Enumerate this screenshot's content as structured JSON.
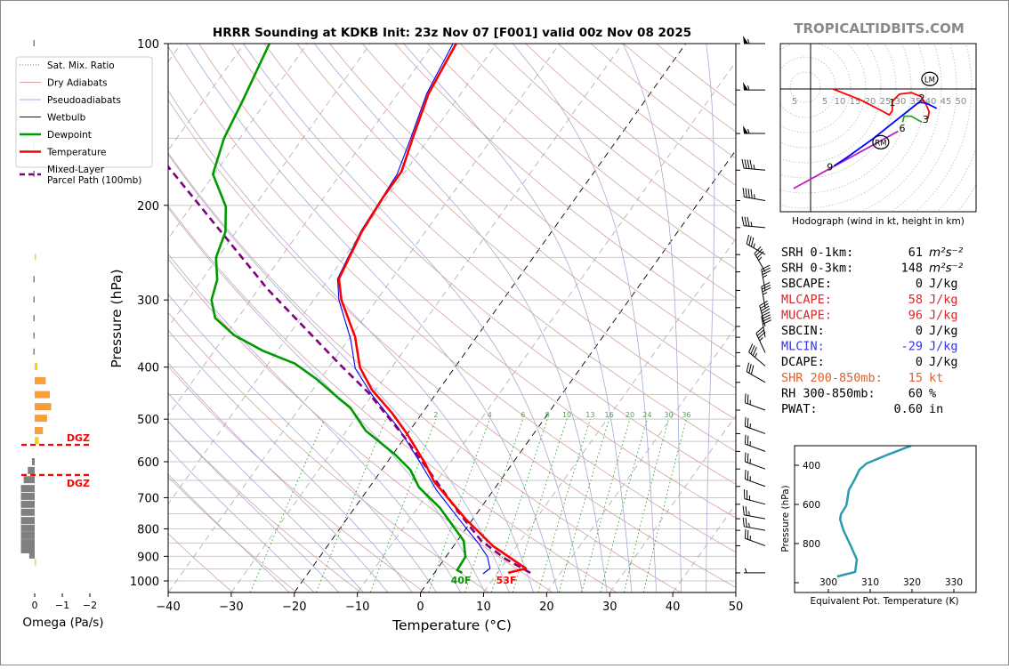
{
  "title": "HRRR Sounding at KDKB Init: 23z Nov 07 [F001] valid 00z Nov 08 2025",
  "watermark": "TROPICALTIDBITS.COM",
  "legend": [
    {
      "label": "Sat. Mix. Ratio",
      "color": "#2ca02c",
      "style": "dotted"
    },
    {
      "label": "Dry Adiabats",
      "color": "#d9a0a0",
      "style": "solid"
    },
    {
      "label": "Pseudoadiabats",
      "color": "#a8a8d8",
      "style": "solid"
    },
    {
      "label": "Wetbulb",
      "color": "#0000ee",
      "style": "solid"
    },
    {
      "label": "Dewpoint",
      "color": "#009900",
      "style": "thick"
    },
    {
      "label": "Temperature",
      "color": "#ff0000",
      "style": "thick"
    },
    {
      "label": "Mixed-Layer",
      "label2": "Parcel Path (100mb)",
      "color": "#800080",
      "style": "dashed"
    }
  ],
  "stats": [
    {
      "label": "SRH 0-1km:",
      "value": "61",
      "unit": "m²s⁻²",
      "color": "#000000"
    },
    {
      "label": "SRH 0-3km:",
      "value": "148",
      "unit": "m²s⁻²",
      "color": "#000000"
    },
    {
      "label": "SBCAPE:",
      "value": "0",
      "unit": "J/kg",
      "color": "#000000"
    },
    {
      "label": "MLCAPE:",
      "value": "58",
      "unit": "J/kg",
      "color": "#d62728"
    },
    {
      "label": "MUCAPE:",
      "value": "96",
      "unit": "J/kg",
      "color": "#d62728"
    },
    {
      "label": "SBCIN:",
      "value": "0",
      "unit": "J/kg",
      "color": "#000000"
    },
    {
      "label": "MLCIN:",
      "value": "-29",
      "unit": "J/kg",
      "color": "#3333dd"
    },
    {
      "label": "DCAPE:",
      "value": "0",
      "unit": "J/kg",
      "color": "#000000"
    },
    {
      "label": "SHR 200-850mb:",
      "value": "15",
      "unit": "kt",
      "color": "#e0602a"
    },
    {
      "label": "RH 300-850mb:",
      "value": "60",
      "unit": "%",
      "color": "#000000"
    },
    {
      "label": "PWAT:",
      "value": "0.60",
      "unit": "in",
      "color": "#000000"
    }
  ],
  "chart_data": [
    {
      "type": "line",
      "name": "skewt",
      "title": "HRRR Sounding at KDKB Init: 23z Nov 07 [F001] valid 00z Nov 08 2025",
      "xlabel": "Temperature (°C)",
      "ylabel": "Pressure (hPa)",
      "xlim": [
        -40,
        50
      ],
      "ylim": [
        1050,
        100
      ],
      "x_ticks": [
        "−40",
        "−30",
        "−20",
        "−10",
        "0",
        "10",
        "20",
        "30",
        "40",
        "50"
      ],
      "x_tick_values": [
        -40,
        -30,
        -20,
        -10,
        0,
        10,
        20,
        30,
        40,
        50
      ],
      "y_ticks": [
        "100",
        "200",
        "300",
        "400",
        "500",
        "600",
        "700",
        "800",
        "900",
        "1000"
      ],
      "y_tick_values": [
        100,
        200,
        300,
        400,
        500,
        600,
        700,
        800,
        900,
        1000
      ],
      "mixing_ratio_labels": [
        "2",
        "4",
        "6",
        "8",
        "10",
        "13",
        "16",
        "20",
        "24",
        "30",
        "36"
      ],
      "mixing_ratio_values": [
        2,
        4,
        6,
        8,
        10,
        13,
        16,
        20,
        24,
        30,
        36
      ],
      "surface_temp_label": "53F",
      "surface_dewpoint_label": "40F",
      "series": [
        {
          "name": "Temperature",
          "color": "#ff0000",
          "p": [
            966,
            948,
            862,
            769,
            653,
            605,
            533,
            487,
            441,
            400,
            352,
            300,
            274,
            224,
            193,
            173,
            150,
            124,
            100
          ],
          "t": [
            11.7,
            14.0,
            6.3,
            -1.0,
            -10.4,
            -13.8,
            -20.0,
            -24.8,
            -30.6,
            -35.1,
            -39.2,
            -45.6,
            -48.4,
            -50.1,
            -50.6,
            -50.6,
            -52.6,
            -55.1,
            -56.4
          ]
        },
        {
          "name": "Dewpoint",
          "color": "#009900",
          "p": [
            966,
            955,
            902,
            842,
            820,
            731,
            670,
            621,
            582,
            525,
            476,
            458,
            421,
            394,
            373,
            349,
            324,
            300,
            275,
            250,
            224,
            201,
            175,
            150,
            129,
            100
          ],
          "t": [
            4.4,
            3.3,
            3.1,
            1.0,
            -0.4,
            -6.5,
            -12.1,
            -15.5,
            -19.6,
            -27.0,
            -32.0,
            -34.8,
            -40.6,
            -45.8,
            -52.3,
            -58.6,
            -63.6,
            -66.2,
            -67.6,
            -70.3,
            -71.7,
            -74.5,
            -80.2,
            -82.5,
            -83.7,
            -86.0
          ]
        },
        {
          "name": "Wetbulb",
          "color": "#0000ee",
          "p": [
            970,
            948,
            902,
            852,
            798,
            678,
            605,
            519,
            451,
            402,
            355,
            300,
            274,
            223,
            175,
            150,
            124,
            100
          ],
          "t": [
            7.8,
            8.3,
            6.6,
            3.7,
            0.0,
            -9.0,
            -14.5,
            -22.1,
            -30.0,
            -35.7,
            -39.7,
            -46.0,
            -48.6,
            -50.3,
            -51.0,
            -52.9,
            -55.4,
            -56.9
          ]
        },
        {
          "name": "Mixed-Layer Parcel Path (100mb)",
          "color": "#800080",
          "p": [
            966,
            909,
            842,
            740,
            653,
            539,
            446,
            394,
            287,
            169
          ],
          "t": [
            15.2,
            9.6,
            3.8,
            -3.4,
            -10.0,
            -20.2,
            -30.9,
            -38.8,
            -58.4,
            -88.3
          ]
        }
      ],
      "winds": [
        {
          "p": 100,
          "kt": 55,
          "dir": 270
        },
        {
          "p": 122,
          "kt": 55,
          "dir": 270
        },
        {
          "p": 147,
          "kt": 55,
          "dir": 270
        },
        {
          "p": 172,
          "kt": 45,
          "dir": 275
        },
        {
          "p": 196,
          "kt": 45,
          "dir": 280
        },
        {
          "p": 220,
          "kt": 35,
          "dir": 275
        },
        {
          "p": 247,
          "kt": 35,
          "dir": 300
        },
        {
          "p": 266,
          "kt": 35,
          "dir": 330
        },
        {
          "p": 288,
          "kt": 35,
          "dir": 350
        },
        {
          "p": 310,
          "kt": 35,
          "dir": 350
        },
        {
          "p": 336,
          "kt": 40,
          "dir": 345
        },
        {
          "p": 352,
          "kt": 40,
          "dir": 350
        },
        {
          "p": 376,
          "kt": 35,
          "dir": 335
        },
        {
          "p": 398,
          "kt": 35,
          "dir": 310
        },
        {
          "p": 427,
          "kt": 30,
          "dir": 300
        },
        {
          "p": 481,
          "kt": 25,
          "dir": 290
        },
        {
          "p": 532,
          "kt": 25,
          "dir": 290
        },
        {
          "p": 574,
          "kt": 25,
          "dir": 290
        },
        {
          "p": 619,
          "kt": 25,
          "dir": 290
        },
        {
          "p": 667,
          "kt": 25,
          "dir": 290
        },
        {
          "p": 720,
          "kt": 25,
          "dir": 285
        },
        {
          "p": 766,
          "kt": 25,
          "dir": 280
        },
        {
          "p": 805,
          "kt": 25,
          "dir": 280
        },
        {
          "p": 860,
          "kt": 25,
          "dir": 290
        },
        {
          "p": 966,
          "kt": 5,
          "dir": 270
        }
      ]
    },
    {
      "type": "bar",
      "name": "omega",
      "xlabel": "Omega (Pa/s)",
      "x_ticks": [
        "0",
        "−1",
        "−2"
      ],
      "x_tick_values": [
        0,
        -1,
        -2
      ],
      "dgz_label": "DGZ",
      "dgz_bounds_hpa": [
        558,
        635
      ],
      "levels_hpa": [
        100,
        155,
        175,
        250,
        275,
        300,
        325,
        350,
        375,
        399,
        424,
        450,
        474,
        498,
        525,
        548,
        600,
        623,
        648,
        673,
        696,
        720,
        745,
        772,
        798,
        823,
        849,
        875,
        895,
        925
      ],
      "omega": [
        0.02,
        0.02,
        0.02,
        -0.01,
        0.02,
        0.02,
        0.03,
        0.04,
        0.02,
        -0.1,
        -0.4,
        -0.55,
        -0.6,
        -0.45,
        -0.3,
        -0.15,
        0.1,
        0.25,
        0.4,
        0.5,
        0.5,
        0.5,
        0.5,
        0.5,
        0.5,
        0.5,
        0.5,
        0.5,
        0.2,
        -0.01
      ]
    },
    {
      "type": "line",
      "name": "hodograph",
      "caption": "Hodograph (wind in kt, height in km)",
      "ring_labels": [
        "5",
        "5",
        "10",
        "15",
        "20",
        "25",
        "30",
        "35",
        "40",
        "45",
        "50"
      ],
      "ring_label_values": [
        -5,
        5,
        10,
        15,
        20,
        25,
        30,
        35,
        40,
        45,
        50
      ],
      "segments": [
        {
          "color": "#ff0000",
          "u": [
            7.4,
            16.7,
            23.5,
            26,
            27,
            27,
            29.4,
            33.3,
            36.5,
            38.2,
            39.2,
            38.7
          ],
          "v": [
            0,
            -3.7,
            -7.2,
            -8.6,
            -7.2,
            -4.1,
            -1.7,
            -1.2,
            -2.5,
            -5.2,
            -7.6,
            -10
          ]
        },
        {
          "color": "#2ca02c",
          "u": [
            36.8,
            33.3,
            30.9,
            30.4
          ],
          "v": [
            -11,
            -9,
            -9,
            -11
          ]
        },
        {
          "color": "#bb22bb",
          "u": [
            28.9,
            -5.4,
            6.4
          ],
          "v": [
            -14,
            -32.8,
            -26.3
          ]
        },
        {
          "color": "#0000ff",
          "u": [
            41.7,
            38.2,
            35.8,
            20.6,
            11.8,
            7.8
          ],
          "v": [
            -6.4,
            -4.7,
            -4.4,
            -16.5,
            -22.8,
            -25.4
          ]
        }
      ],
      "height_labels": [
        {
          "text": "1",
          "u": 27,
          "v": -4.4
        },
        {
          "text": "2",
          "u": 36.8,
          "v": -3
        },
        {
          "text": "3",
          "u": 38,
          "v": -10
        },
        {
          "text": "6",
          "u": 30.3,
          "v": -13
        },
        {
          "text": "9",
          "u": 6.4,
          "v": -25.8
        }
      ],
      "storm_motion": [
        {
          "text": "LM",
          "u": 39.4,
          "v": 3.3
        },
        {
          "text": "RM",
          "u": 23.2,
          "v": -17.6
        }
      ]
    },
    {
      "type": "line",
      "name": "theta_e",
      "xlabel": "Equivalent Pot. Temperature (K)",
      "ylabel": "Pressure (hPa)",
      "xlim": [
        292,
        335
      ],
      "ylim": [
        1050,
        300
      ],
      "x_ticks": [
        "300",
        "310",
        "320",
        "330"
      ],
      "x_tick_values": [
        300,
        310,
        320,
        330
      ],
      "y_ticks": [
        "400",
        "600",
        "800"
      ],
      "y_tick_values": [
        400,
        600,
        800
      ],
      "color": "#2a9ab0",
      "p": [
        968,
        945,
        882,
        809,
        732,
        677,
        650,
        605,
        527,
        468,
        423,
        391,
        345,
        300
      ],
      "theta_e": [
        302.1,
        306.4,
        306.8,
        305.3,
        303.6,
        302.8,
        303,
        304.3,
        304.9,
        306.4,
        307.4,
        309.1,
        314.3,
        319.8
      ]
    }
  ]
}
